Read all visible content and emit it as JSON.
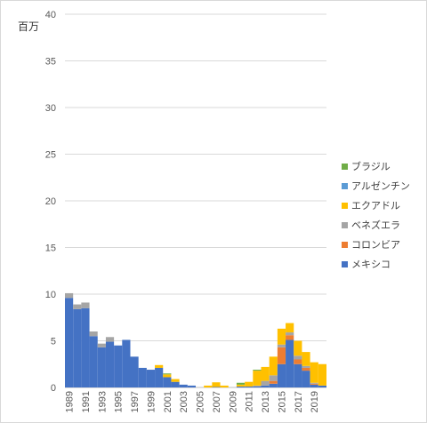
{
  "chart_data": {
    "type": "bar",
    "stacked": true,
    "unit_label": "百万",
    "ylim": [
      0,
      40
    ],
    "y_ticks": [
      "0",
      "5",
      "10",
      "15",
      "20",
      "25",
      "30",
      "35",
      "40"
    ],
    "categories": [
      "1989",
      "1990",
      "1991",
      "1992",
      "1993",
      "1994",
      "1995",
      "1996",
      "1997",
      "1998",
      "1999",
      "2000",
      "2001",
      "2002",
      "2003",
      "2004",
      "2005",
      "2006",
      "2007",
      "2008",
      "2009",
      "2010",
      "2011",
      "2012",
      "2013",
      "2014",
      "2015",
      "2016",
      "2017",
      "2018",
      "2019",
      "2020"
    ],
    "x_tick_labels": [
      "1989",
      "1991",
      "1993",
      "1995",
      "1997",
      "1999",
      "2001",
      "2003",
      "2005",
      "2007",
      "2009",
      "2011",
      "2013",
      "2015",
      "2017",
      "2019"
    ],
    "grid": true,
    "legend_position": "right",
    "series": [
      {
        "name": "メキシコ",
        "color": "#4472c4",
        "values": [
          9.6,
          8.4,
          8.5,
          5.5,
          4.3,
          4.9,
          4.5,
          5.1,
          3.3,
          2.1,
          1.9,
          2.1,
          1.1,
          0.6,
          0.3,
          0.2,
          0,
          0,
          0.05,
          0,
          0,
          0.1,
          0.1,
          0.1,
          0.2,
          0.4,
          2.5,
          5.1,
          2.5,
          1.8,
          0.3,
          0.2
        ]
      },
      {
        "name": "コロンビア",
        "color": "#ed7d31",
        "values": [
          0,
          0,
          0,
          0,
          0,
          0,
          0,
          0,
          0,
          0,
          0,
          0,
          0,
          0,
          0,
          0,
          0,
          0,
          0,
          0,
          0,
          0,
          0,
          0,
          0,
          0.3,
          1.8,
          0.5,
          0.5,
          0.3,
          0.1,
          0
        ]
      },
      {
        "name": "ベネズエラ",
        "color": "#a5a5a5",
        "values": [
          0.5,
          0.5,
          0.6,
          0.5,
          0.4,
          0.5,
          0,
          0,
          0,
          0,
          0,
          0,
          0,
          0,
          0,
          0,
          0,
          0,
          0,
          0,
          0,
          0,
          0,
          0.1,
          0.5,
          0.6,
          0.3,
          0.3,
          0.4,
          0.2,
          0.1,
          0
        ]
      },
      {
        "name": "エクアドル",
        "color": "#ffc000",
        "values": [
          0,
          0,
          0,
          0,
          0,
          0,
          0,
          0,
          0,
          0,
          0,
          0.3,
          0.3,
          0.3,
          0,
          0,
          0,
          0.2,
          0.5,
          0.2,
          0,
          0.2,
          0.5,
          1.6,
          1.5,
          2.0,
          1.7,
          1.0,
          1.6,
          1.5,
          2.2,
          2.3
        ]
      },
      {
        "name": "アルゼンチン",
        "color": "#5b9bd5",
        "values": [
          0,
          0,
          0,
          0,
          0,
          0,
          0,
          0,
          0,
          0,
          0,
          0,
          0,
          0,
          0,
          0,
          0,
          0,
          0,
          0,
          0,
          0,
          0,
          0,
          0,
          0,
          0,
          0,
          0,
          0,
          0,
          0
        ]
      },
      {
        "name": "ブラジル",
        "color": "#70ad47",
        "values": [
          0,
          0,
          0,
          0,
          0,
          0,
          0,
          0,
          0,
          0,
          0,
          0,
          0.1,
          0,
          0,
          0,
          0,
          0,
          0,
          0,
          0,
          0.2,
          0,
          0.1,
          0,
          0,
          0,
          0,
          0,
          0,
          0,
          0
        ]
      }
    ],
    "legend_order": [
      "ブラジル",
      "アルゼンチン",
      "エクアドル",
      "ベネズエラ",
      "コロンビア",
      "メキシコ"
    ]
  }
}
